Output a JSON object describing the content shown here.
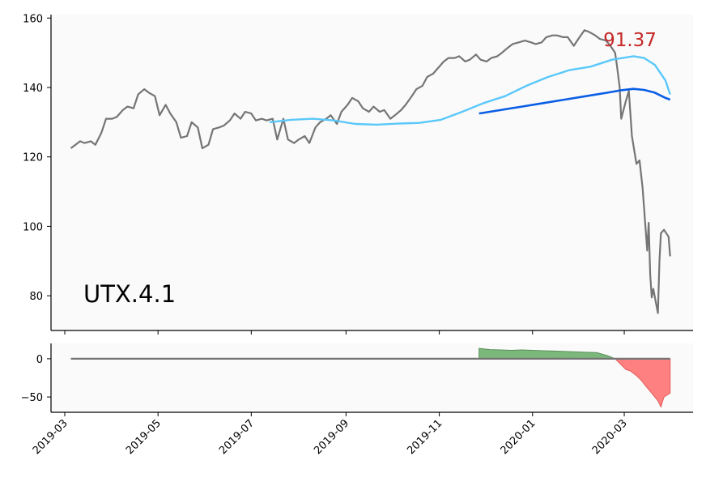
{
  "chart_data": [
    {
      "type": "line",
      "ticker_label": "UTX.4.1",
      "last_price_label": "91.37",
      "ylim": [
        70,
        161
      ],
      "y_ticks": [
        80,
        100,
        120,
        140,
        160
      ],
      "y_tick_labels": [
        "80",
        "100",
        "120",
        "140",
        "160"
      ],
      "grid": false,
      "colors": {
        "price": "#757575",
        "ma_fast": "#5ac8fa",
        "ma_slow": "#0a5ee6",
        "annotation": "#c62828"
      },
      "series": [
        {
          "key": "price",
          "x": [
            "2019-03-05",
            "2019-03-08",
            "2019-03-11",
            "2019-03-14",
            "2019-03-18",
            "2019-03-21",
            "2019-03-25",
            "2019-03-28",
            "2019-04-01",
            "2019-04-04",
            "2019-04-08",
            "2019-04-11",
            "2019-04-15",
            "2019-04-18",
            "2019-04-22",
            "2019-04-25",
            "2019-04-29",
            "2019-05-02",
            "2019-05-06",
            "2019-05-09",
            "2019-05-13",
            "2019-05-16",
            "2019-05-20",
            "2019-05-23",
            "2019-05-27",
            "2019-05-30",
            "2019-06-03",
            "2019-06-06",
            "2019-06-10",
            "2019-06-13",
            "2019-06-17",
            "2019-06-20",
            "2019-06-24",
            "2019-06-27",
            "2019-07-01",
            "2019-07-04",
            "2019-07-08",
            "2019-07-11",
            "2019-07-15",
            "2019-07-18",
            "2019-07-22",
            "2019-07-25",
            "2019-07-29",
            "2019-08-01",
            "2019-08-05",
            "2019-08-08",
            "2019-08-12",
            "2019-08-15",
            "2019-08-19",
            "2019-08-22",
            "2019-08-26",
            "2019-08-29",
            "2019-09-02",
            "2019-09-05",
            "2019-09-09",
            "2019-09-12",
            "2019-09-16",
            "2019-09-19",
            "2019-09-23",
            "2019-09-26",
            "2019-09-30",
            "2019-10-03",
            "2019-10-07",
            "2019-10-10",
            "2019-10-14",
            "2019-10-17",
            "2019-10-21",
            "2019-10-24",
            "2019-10-28",
            "2019-10-31",
            "2019-11-04",
            "2019-11-07",
            "2019-11-11",
            "2019-11-14",
            "2019-11-18",
            "2019-11-21",
            "2019-11-25",
            "2019-11-28",
            "2019-12-02",
            "2019-12-05",
            "2019-12-09",
            "2019-12-12",
            "2019-12-16",
            "2019-12-19",
            "2019-12-23",
            "2019-12-27",
            "2019-12-31",
            "2020-01-03",
            "2020-01-07",
            "2020-01-10",
            "2020-01-14",
            "2020-01-17",
            "2020-01-21",
            "2020-01-24",
            "2020-01-28",
            "2020-01-31",
            "2020-02-04",
            "2020-02-07",
            "2020-02-11",
            "2020-02-14",
            "2020-02-18",
            "2020-02-21",
            "2020-02-24",
            "2020-02-25",
            "2020-02-27",
            "2020-02-28",
            "2020-03-02",
            "2020-03-04",
            "2020-03-06",
            "2020-03-09",
            "2020-03-11",
            "2020-03-13",
            "2020-03-16",
            "2020-03-17",
            "2020-03-18",
            "2020-03-19",
            "2020-03-20",
            "2020-03-23",
            "2020-03-24",
            "2020-03-25",
            "2020-03-27",
            "2020-03-30",
            "2020-03-31"
          ],
          "values": [
            122.5,
            123.5,
            124.5,
            124.0,
            124.5,
            123.5,
            127.0,
            131.0,
            131.0,
            131.5,
            133.5,
            134.5,
            134.0,
            138.0,
            139.5,
            138.5,
            137.5,
            132.0,
            135.0,
            132.5,
            130.0,
            125.5,
            126.0,
            130.0,
            128.5,
            122.5,
            123.5,
            128.0,
            128.5,
            129.0,
            130.5,
            132.5,
            131.0,
            133.0,
            132.5,
            130.5,
            131.0,
            130.5,
            131.0,
            125.0,
            131.0,
            125.0,
            124.0,
            125.0,
            126.0,
            124.0,
            128.5,
            130.0,
            131.0,
            132.0,
            129.5,
            133.0,
            135.0,
            137.0,
            136.0,
            134.0,
            133.0,
            134.5,
            133.0,
            133.5,
            131.0,
            132.0,
            133.5,
            135.0,
            137.5,
            139.5,
            140.5,
            143.0,
            144.0,
            145.5,
            147.5,
            148.5,
            148.5,
            149.0,
            147.5,
            148.0,
            149.5,
            148.0,
            147.5,
            148.5,
            149.0,
            150.0,
            151.5,
            152.5,
            153.0,
            153.5,
            153.0,
            152.5,
            153.0,
            154.5,
            155.0,
            155.0,
            154.5,
            154.5,
            152.0,
            154.0,
            156.5,
            156.0,
            155.0,
            154.0,
            153.5,
            152.0,
            150.0,
            147.0,
            140.0,
            131.0,
            136.0,
            139.0,
            126.0,
            118.0,
            119.0,
            111.0,
            93.0,
            101.0,
            86.0,
            79.5,
            82.0,
            75.0,
            90.0,
            98.0,
            99.0,
            97.0,
            91.37
          ]
        },
        {
          "key": "ma_fast",
          "x": [
            "2019-07-13",
            "2019-07-27",
            "2019-08-10",
            "2019-08-24",
            "2019-09-07",
            "2019-09-21",
            "2019-10-05",
            "2019-10-19",
            "2019-11-02",
            "2019-11-16",
            "2019-11-30",
            "2019-12-14",
            "2019-12-28",
            "2020-01-11",
            "2020-01-25",
            "2020-02-08",
            "2020-02-22",
            "2020-03-07",
            "2020-03-14",
            "2020-03-21",
            "2020-03-28",
            "2020-03-31"
          ],
          "values": [
            130.0,
            130.7,
            131.0,
            130.5,
            129.5,
            129.3,
            129.6,
            129.8,
            130.7,
            133.0,
            135.5,
            137.5,
            140.5,
            143.0,
            145.0,
            146.0,
            148.0,
            149.0,
            148.5,
            146.5,
            142.0,
            138.0
          ]
        },
        {
          "key": "ma_slow",
          "x": [
            "2019-11-27",
            "2019-12-11",
            "2019-12-25",
            "2020-01-08",
            "2020-01-22",
            "2020-02-05",
            "2020-02-19",
            "2020-02-28",
            "2020-03-07",
            "2020-03-14",
            "2020-03-21",
            "2020-03-28",
            "2020-03-31"
          ],
          "values": [
            132.5,
            133.5,
            134.5,
            135.5,
            136.5,
            137.5,
            138.5,
            139.2,
            139.6,
            139.3,
            138.5,
            137.0,
            136.5
          ]
        }
      ]
    },
    {
      "type": "area",
      "ylim": [
        -70,
        20
      ],
      "y_ticks": [
        0,
        -50
      ],
      "y_tick_labels": [
        "0",
        "−50"
      ],
      "grid": false,
      "colors": {
        "zero_line": "#757575",
        "positive_fill": "#7cb87c",
        "positive_edge": "#5a8f5a",
        "negative_fill": "#ff8080",
        "negative_edge": "#e05c5c"
      },
      "series": [
        {
          "key": "spread",
          "x": [
            "2019-11-27",
            "2019-12-04",
            "2019-12-11",
            "2019-12-18",
            "2019-12-25",
            "2020-01-01",
            "2020-01-08",
            "2020-01-15",
            "2020-01-22",
            "2020-01-29",
            "2020-02-05",
            "2020-02-12",
            "2020-02-19",
            "2020-02-24",
            "2020-02-28",
            "2020-03-02",
            "2020-03-05",
            "2020-03-09",
            "2020-03-12",
            "2020-03-16",
            "2020-03-19",
            "2020-03-23",
            "2020-03-25",
            "2020-03-27",
            "2020-03-31"
          ],
          "values": [
            13.5,
            12.0,
            11.5,
            11.0,
            11.5,
            11.0,
            10.5,
            10.0,
            9.5,
            9.0,
            8.5,
            8.0,
            4.0,
            0,
            -8.0,
            -14.0,
            -16.0,
            -22.0,
            -28.0,
            -38.0,
            -45.0,
            -55.0,
            -63.0,
            -50.0,
            -45.0
          ]
        }
      ]
    }
  ],
  "x_axis": {
    "range": [
      "2019-02-20",
      "2020-04-15"
    ],
    "ticks": [
      "2019-03-01",
      "2019-05-01",
      "2019-07-01",
      "2019-09-01",
      "2019-11-01",
      "2020-01-01",
      "2020-03-01"
    ],
    "tick_labels": [
      "2019-03",
      "2019-05",
      "2019-07",
      "2019-09",
      "2019-11",
      "2020-01",
      "2020-03"
    ]
  }
}
